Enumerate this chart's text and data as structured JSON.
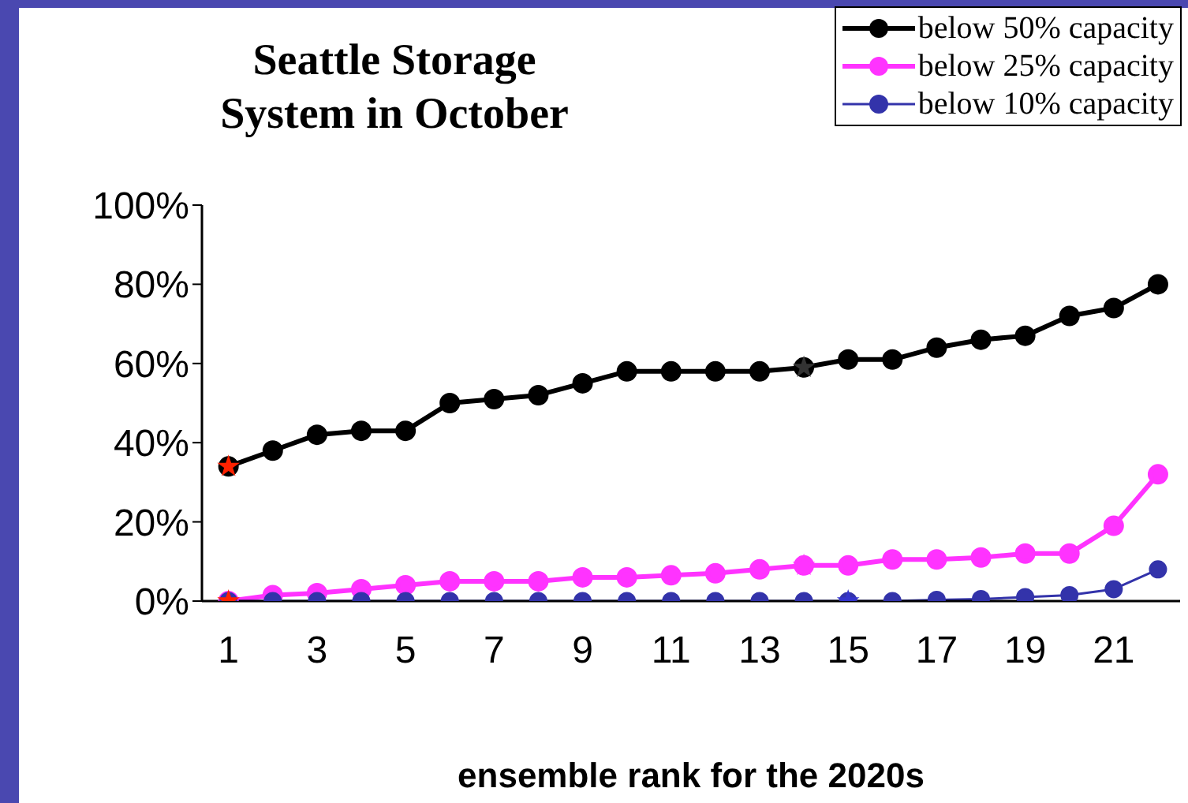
{
  "chart_data": {
    "type": "line",
    "title": "Seattle Storage System in October",
    "xlabel": "ensemble rank for the 2020s",
    "x": [
      1,
      2,
      3,
      4,
      5,
      6,
      7,
      8,
      9,
      10,
      11,
      12,
      13,
      14,
      15,
      16,
      17,
      18,
      19,
      20,
      21,
      22
    ],
    "xlim": [
      0.4,
      22.5
    ],
    "xticks": [
      1,
      3,
      5,
      7,
      9,
      11,
      13,
      15,
      17,
      19,
      21
    ],
    "ylim": [
      0,
      100
    ],
    "yticks": [
      {
        "value": 0,
        "label": "0%"
      },
      {
        "value": 20,
        "label": "20%"
      },
      {
        "value": 40,
        "label": "40%"
      },
      {
        "value": 60,
        "label": "60%"
      },
      {
        "value": 80,
        "label": "80%"
      },
      {
        "value": 100,
        "label": "100%"
      }
    ],
    "grid": false,
    "legend": "top right",
    "marker": "circle",
    "line_style": "solid",
    "series": [
      {
        "name": "below 50% capacity",
        "color": "#000000",
        "values": [
          34,
          38,
          42,
          43,
          43,
          50,
          51,
          52,
          55,
          58,
          58,
          58,
          58,
          59,
          61,
          61,
          64,
          66,
          67,
          72,
          74,
          80
        ]
      },
      {
        "name": "below 25% capacity",
        "color": "#ff33ff",
        "values": [
          0,
          1.5,
          2,
          3,
          4,
          5,
          5,
          5,
          6,
          6,
          6.5,
          7,
          8,
          9,
          9,
          10.5,
          10.5,
          11,
          12,
          12,
          19,
          32
        ]
      },
      {
        "name": "below 10% capacity",
        "color": "#3333aa",
        "values": [
          0,
          0,
          0,
          0,
          0,
          0,
          0,
          0,
          0,
          0,
          0,
          0,
          0,
          0,
          0,
          0,
          0.3,
          0.5,
          1,
          1.5,
          3,
          8
        ]
      },
      {
        "type": "scatter",
        "marker": "star",
        "x": [
          1,
          1,
          14,
          14,
          15
        ],
        "values": [
          34,
          0,
          59,
          9,
          0
        ],
        "colors": [
          "#ff2200",
          "#ff2200",
          "#333333",
          "#ff33ff",
          "#3333cc"
        ]
      }
    ]
  }
}
